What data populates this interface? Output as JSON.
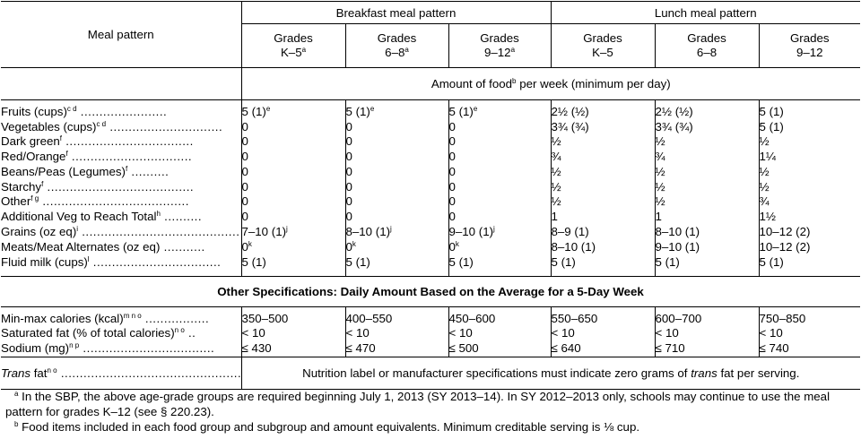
{
  "header": {
    "meal_pattern": "Meal pattern",
    "breakfast": "Breakfast meal pattern",
    "lunch": "Lunch meal pattern",
    "grades_word": "Grades",
    "cols": [
      {
        "grade": "K–5",
        "note": "a"
      },
      {
        "grade": "6–8",
        "note": "a"
      },
      {
        "grade": "9–12",
        "note": "a"
      },
      {
        "grade": "K–5",
        "note": ""
      },
      {
        "grade": "6–8",
        "note": ""
      },
      {
        "grade": "9–12",
        "note": ""
      }
    ],
    "amount_pre": "Amount of food",
    "amount_note": "b",
    "amount_post": " per week (minimum per day)"
  },
  "rows": [
    {
      "label": "Fruits (cups)",
      "note": "c d",
      "dots": " .......................",
      "v": [
        "5 (1)",
        "5 (1)",
        "5 (1)",
        "2½ (½)",
        "2½ (½)",
        "5 (1)"
      ],
      "vn": [
        "e",
        "e",
        "e",
        "",
        "",
        ""
      ]
    },
    {
      "label": "Vegetables (cups)",
      "note": "c d",
      "dots": " ..............................",
      "v": [
        "0",
        "0",
        "0",
        "3¾ (¾)",
        "3¾ (¾)",
        "5 (1)"
      ],
      "vn": [
        "",
        "",
        "",
        "",
        "",
        ""
      ]
    },
    {
      "label": "Dark green",
      "note": "f",
      "dots": " ..................................",
      "v": [
        "0",
        "0",
        "0",
        "½",
        "½",
        "½"
      ],
      "vn": [
        "",
        "",
        "",
        "",
        "",
        ""
      ]
    },
    {
      "label": "Red/Orange",
      "note": "f",
      "dots": " ................................",
      "v": [
        "0",
        "0",
        "0",
        "¾",
        "¾",
        "1¼"
      ],
      "vn": [
        "",
        "",
        "",
        "",
        "",
        ""
      ]
    },
    {
      "label": "Beans/Peas (Legumes)",
      "note": "f",
      "dots": " ..........",
      "v": [
        "0",
        "0",
        "0",
        "½",
        "½",
        "½"
      ],
      "vn": [
        "",
        "",
        "",
        "",
        "",
        ""
      ]
    },
    {
      "label": "Starchy",
      "note": "f",
      "dots": " .......................................",
      "v": [
        "0",
        "0",
        "0",
        "½",
        "½",
        "½"
      ],
      "vn": [
        "",
        "",
        "",
        "",
        "",
        ""
      ]
    },
    {
      "label": "Other",
      "note": "f g",
      "dots": " .......................................",
      "v": [
        "0",
        "0",
        "0",
        "½",
        "½",
        "¾"
      ],
      "vn": [
        "",
        "",
        "",
        "",
        "",
        ""
      ]
    },
    {
      "label": "Additional Veg to Reach Total",
      "note": "h",
      "dots": " ..........",
      "v": [
        "0",
        "0",
        "0",
        "1",
        "1",
        "1½"
      ],
      "vn": [
        "",
        "",
        "",
        "",
        "",
        ""
      ]
    },
    {
      "label": "Grains (oz eq)",
      "note": "i",
      "dots": " ..........................................",
      "v": [
        "7–10 (1)",
        "8–10 (1)",
        "9–10 (1)",
        "8–9 (1)",
        "8–10 (1)",
        "10–12 (2)"
      ],
      "vn": [
        "j",
        "j",
        "j",
        "",
        "",
        ""
      ]
    },
    {
      "label": "Meats/Meat Alternates (oz eq)",
      "note": "",
      "dots": " ...........",
      "v": [
        "0",
        "0",
        "0",
        "8–10 (1)",
        "9–10 (1)",
        "10–12 (2)"
      ],
      "vn": [
        "k",
        "k",
        "k",
        "",
        "",
        ""
      ]
    },
    {
      "label": "Fluid milk (cups)",
      "note": "l",
      "dots": " ..................................",
      "v": [
        "5 (1)",
        "5 (1)",
        "5 (1)",
        "5 (1)",
        "5 (1)",
        "5 (1)"
      ],
      "vn": [
        "",
        "",
        "",
        "",
        "",
        ""
      ]
    }
  ],
  "other_spec_title": "Other Specifications: Daily Amount Based on the Average for a 5-Day Week",
  "specs": [
    {
      "label": "Min-max calories (kcal)",
      "note": "m n o",
      "dots": " .................",
      "v": [
        "350–500",
        "400–550",
        "450–600",
        "550–650",
        "600–700",
        "750–850"
      ]
    },
    {
      "label": "Saturated fat (% of total calories)",
      "note": "n o",
      "dots": " ..",
      "v": [
        "< 10",
        "< 10",
        "< 10",
        "< 10",
        "< 10",
        "< 10"
      ]
    },
    {
      "label": "Sodium (mg)",
      "note": "n p",
      "dots": " ...................................",
      "v": [
        "≤ 430",
        "≤ 470",
        "≤ 500",
        "≤ 640",
        "≤ 710",
        "≤ 740"
      ]
    }
  ],
  "trans": {
    "label": "Trans",
    "label_post": " fat",
    "note": "n o",
    "dots": " ................................................",
    "text_pre": "Nutrition label or manufacturer specifications must indicate zero grams of ",
    "text_it": "trans",
    "text_post": " fat per serving."
  },
  "footnotes": [
    {
      "mark": "a",
      "text": " In the SBP, the above age-grade groups are required beginning July 1, 2013 (SY 2013–14). In SY 2012–2013 only, schools may continue to use the meal pattern for grades K–12 (see § 220.23)."
    },
    {
      "mark": "b",
      "text": " Food items included in each food group and subgroup and amount equivalents. Minimum creditable serving is ⅛ cup."
    }
  ]
}
